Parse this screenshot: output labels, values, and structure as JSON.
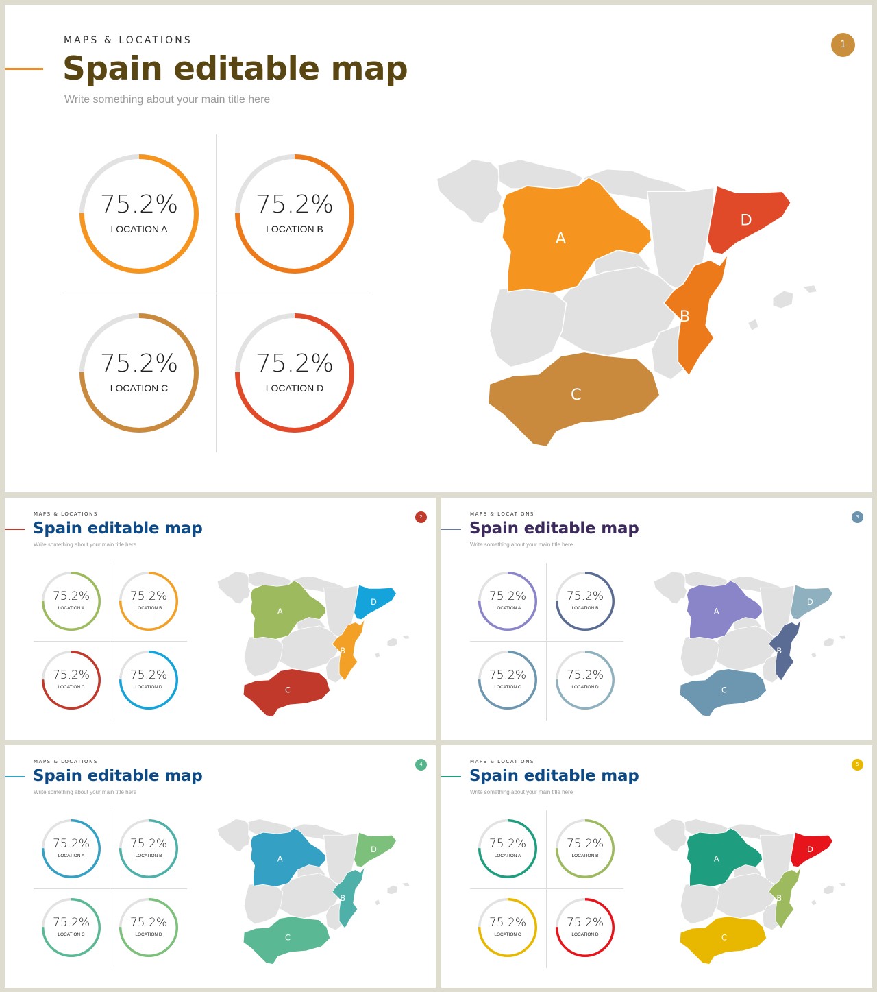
{
  "slides": [
    {
      "eyebrow": "MAPS & LOCATIONS",
      "title": "Spain editable map",
      "subtitle": "Write something about your main title here",
      "badge": "1",
      "colors": {
        "title": "#5a4612",
        "badge": "#c98f3d",
        "accent": "#f08a24",
        "A": "#f5951f",
        "B": "#ec7a1a",
        "C": "#c98a3e",
        "D": "#e04a28"
      },
      "locations": [
        {
          "value": "75.2%",
          "label": "LOCATION A"
        },
        {
          "value": "75.2%",
          "label": "LOCATION B"
        },
        {
          "value": "75.2%",
          "label": "LOCATION C"
        },
        {
          "value": "75.2%",
          "label": "LOCATION D"
        }
      ],
      "map_labels": {
        "A": "A",
        "B": "B",
        "C": "C",
        "D": "D"
      }
    },
    {
      "eyebrow": "MAPS & LOCATIONS",
      "title": "Spain editable map",
      "subtitle": "Write something about your main title here",
      "badge": "2",
      "colors": {
        "title": "#0d4a85",
        "badge": "#c0392b",
        "accent": "#c0392b",
        "A": "#9dbb5e",
        "B": "#f2a126",
        "C": "#c0392b",
        "D": "#14a3db"
      },
      "locations": [
        {
          "value": "75.2%",
          "label": "LOCATION A"
        },
        {
          "value": "75.2%",
          "label": "LOCATION B"
        },
        {
          "value": "75.2%",
          "label": "LOCATION C"
        },
        {
          "value": "75.2%",
          "label": "LOCATION D"
        }
      ],
      "map_labels": {
        "A": "A",
        "B": "B",
        "C": "C",
        "D": "D"
      }
    },
    {
      "eyebrow": "MAPS & LOCATIONS",
      "title": "Spain editable map",
      "subtitle": "Write something about your main title here",
      "badge": "3",
      "colors": {
        "title": "#3d2a5c",
        "badge": "#6b93ad",
        "accent": "#6b7a9c",
        "A": "#8a84c9",
        "B": "#5a6b94",
        "C": "#6d97b0",
        "D": "#8fb1bf"
      },
      "locations": [
        {
          "value": "75.2%",
          "label": "LOCATION A"
        },
        {
          "value": "75.2%",
          "label": "LOCATION B"
        },
        {
          "value": "75.2%",
          "label": "LOCATION C"
        },
        {
          "value": "75.2%",
          "label": "LOCATION D"
        }
      ],
      "map_labels": {
        "A": "A",
        "B": "B",
        "C": "C",
        "D": "D"
      }
    },
    {
      "eyebrow": "MAPS & LOCATIONS",
      "title": "Spain editable map",
      "subtitle": "Write something about your main title here",
      "badge": "4",
      "colors": {
        "title": "#0d4a85",
        "badge": "#56b48c",
        "accent": "#3aa0c2",
        "A": "#34a0c4",
        "B": "#4eb0a8",
        "C": "#5bb894",
        "D": "#7cc07c"
      },
      "locations": [
        {
          "value": "75.2%",
          "label": "LOCATION A"
        },
        {
          "value": "75.2%",
          "label": "LOCATION B"
        },
        {
          "value": "75.2%",
          "label": "LOCATION C"
        },
        {
          "value": "75.2%",
          "label": "LOCATION D"
        }
      ],
      "map_labels": {
        "A": "A",
        "B": "B",
        "C": "C",
        "D": "D"
      }
    },
    {
      "eyebrow": "MAPS & LOCATIONS",
      "title": "Spain editable map",
      "subtitle": "Write something about your main title here",
      "badge": "5",
      "colors": {
        "title": "#0d4a85",
        "badge": "#e8b800",
        "accent": "#1e9e7e",
        "A": "#1e9e7e",
        "B": "#9dbb5e",
        "C": "#e8b800",
        "D": "#e8141b"
      },
      "locations": [
        {
          "value": "75.2%",
          "label": "LOCATION A"
        },
        {
          "value": "75.2%",
          "label": "LOCATION B"
        },
        {
          "value": "75.2%",
          "label": "LOCATION C"
        },
        {
          "value": "75.2%",
          "label": "LOCATION D"
        }
      ],
      "map_labels": {
        "A": "A",
        "B": "B",
        "C": "C",
        "D": "D"
      }
    }
  ],
  "ring_progress": 0.752,
  "ring_track_color": "#e2e2e2",
  "map_base_color": "#e1e1e1"
}
